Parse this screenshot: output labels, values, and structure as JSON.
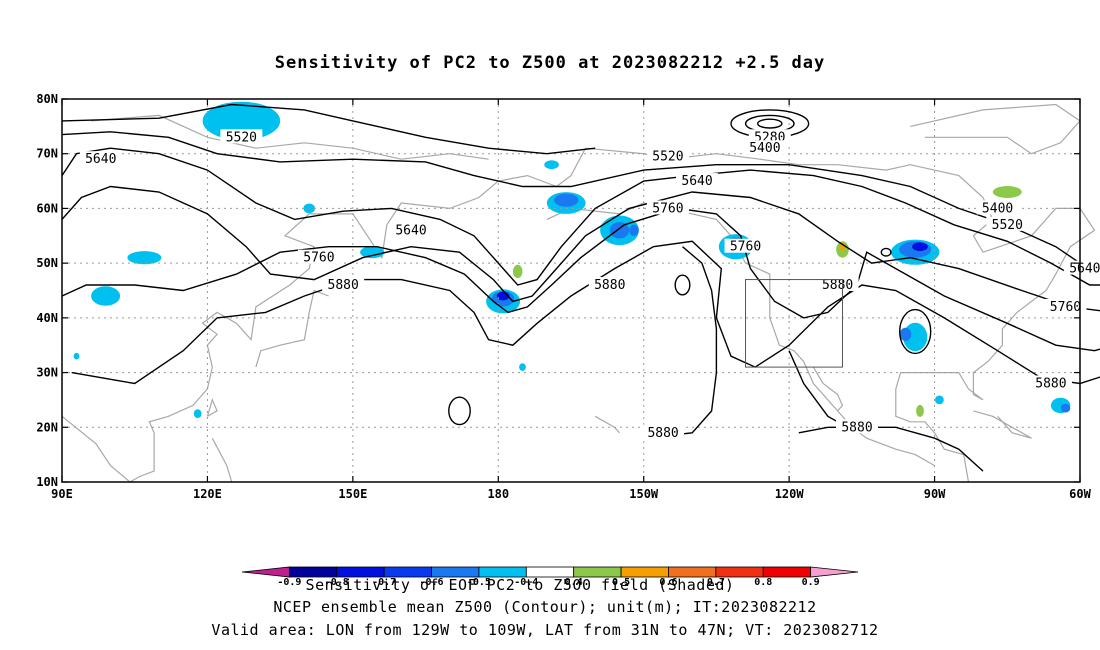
{
  "chart_data": {
    "type": "contour-map",
    "title": "Sensitivity of PC2 to Z500 at 2023082212 +2.5 day",
    "x_axis": {
      "range_lon_east": [
        90,
        300
      ],
      "ticks": [
        {
          "lon": 90,
          "label": "90E"
        },
        {
          "lon": 120,
          "label": "120E"
        },
        {
          "lon": 150,
          "label": "150E"
        },
        {
          "lon": 180,
          "label": "180"
        },
        {
          "lon": 210,
          "label": "150W"
        },
        {
          "lon": 240,
          "label": "120W"
        },
        {
          "lon": 270,
          "label": "90W"
        },
        {
          "lon": 300,
          "label": "60W"
        }
      ]
    },
    "y_axis": {
      "range_lat": [
        10,
        80
      ],
      "ticks": [
        {
          "lat": 10,
          "label": "10N"
        },
        {
          "lat": 20,
          "label": "20N"
        },
        {
          "lat": 30,
          "label": "30N"
        },
        {
          "lat": 40,
          "label": "40N"
        },
        {
          "lat": 50,
          "label": "50N"
        },
        {
          "lat": 60,
          "label": "60N"
        },
        {
          "lat": 70,
          "label": "70N"
        },
        {
          "lat": 80,
          "label": "80N"
        }
      ]
    },
    "grid": true,
    "contour_labels": [
      {
        "text": "5520",
        "lon": 127,
        "lat": 73
      },
      {
        "text": "5640",
        "lon": 98,
        "lat": 69
      },
      {
        "text": "5640",
        "lon": 162,
        "lat": 56
      },
      {
        "text": "5760",
        "lon": 143,
        "lat": 51
      },
      {
        "text": "5880",
        "lon": 148,
        "lat": 46
      },
      {
        "text": "5280",
        "lon": 236,
        "lat": 73
      },
      {
        "text": "5400",
        "lon": 235,
        "lat": 71
      },
      {
        "text": "5520",
        "lon": 215,
        "lat": 69.5
      },
      {
        "text": "5640",
        "lon": 221,
        "lat": 65
      },
      {
        "text": "5760",
        "lon": 215,
        "lat": 60
      },
      {
        "text": "5760",
        "lon": 231,
        "lat": 53
      },
      {
        "text": "5880",
        "lon": 203,
        "lat": 46
      },
      {
        "text": "5880",
        "lon": 250,
        "lat": 46
      },
      {
        "text": "5880",
        "lon": 214,
        "lat": 19
      },
      {
        "text": "5880",
        "lon": 254,
        "lat": 20
      },
      {
        "text": "5400",
        "lon": 283,
        "lat": 60
      },
      {
        "text": "5520",
        "lon": 285,
        "lat": 57
      },
      {
        "text": "5640",
        "lon": 301,
        "lat": 49
      },
      {
        "text": "5760",
        "lon": 297,
        "lat": 42
      },
      {
        "text": "5880",
        "lon": 294,
        "lat": 28
      }
    ],
    "valid_area_box": {
      "lon": [
        231,
        251
      ],
      "lat": [
        31,
        47
      ]
    },
    "colorbar": {
      "colors": [
        "#c0208f",
        "#00009a",
        "#0010e0",
        "#0a3af0",
        "#1a78f0",
        "#00c0f0",
        "#ffffff",
        "#8cc84a",
        "#f5a000",
        "#f07020",
        "#f03010",
        "#f00000",
        "#f5a0d0"
      ],
      "labels": [
        "-0.9",
        "-0.8",
        "-0.7",
        "-0.6",
        "-0.5",
        "-0.4",
        "0.4",
        "0.5",
        "0.6",
        "0.7",
        "0.8",
        "0.9"
      ]
    },
    "footer": [
      "Sensitivity of EOF PC2 to Z500 field (Shaded)",
      "NCEP ensemble mean Z500 (Contour); unit(m); IT:2023082212",
      "Valid area: LON from 129W to 109W, LAT from 31N to 47N; VT: 2023082712"
    ]
  }
}
